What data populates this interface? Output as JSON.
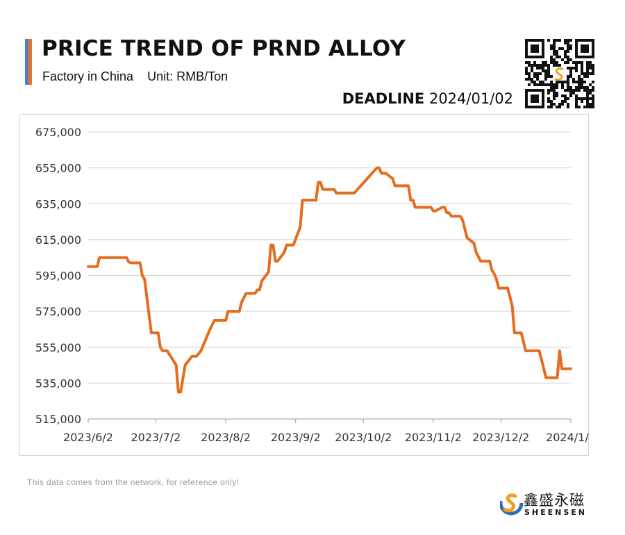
{
  "header": {
    "title": "PRICE TREND OF PRND ALLOY",
    "subtitle_left": "Factory in China",
    "subtitle_right": "Unit: RMB/Ton",
    "deadline_label": "DEADLINE",
    "deadline_date": "2024/01/02",
    "accent_colors": [
      "#4a7fc1",
      "#e8722a"
    ]
  },
  "footer": {
    "note": "This data comes from the network, for reference only!",
    "brand_cn": "鑫盛永磁",
    "brand_en": "SHEENSEN"
  },
  "colors": {
    "line": "#e46c1f",
    "grid": "#d9d9d9",
    "axis_text": "#333333"
  },
  "chart_data": {
    "type": "line",
    "title": "PRICE TREND OF PRND ALLOY",
    "xlabel": "",
    "ylabel": "",
    "ylim": [
      515000,
      675000
    ],
    "yticks": [
      515000,
      535000,
      555000,
      575000,
      595000,
      615000,
      635000,
      655000,
      675000
    ],
    "ytick_labels": [
      "515,000",
      "535,000",
      "555,000",
      "575,000",
      "595,000",
      "615,000",
      "635,000",
      "655,000",
      "675,000"
    ],
    "xlim": [
      "2023-06-02",
      "2024-01-02"
    ],
    "xticks": [
      "2023-06-02",
      "2023-07-02",
      "2023-08-02",
      "2023-09-02",
      "2023-10-02",
      "2023-11-02",
      "2023-12-02",
      "2024-01-02"
    ],
    "xtick_labels": [
      "2023/6/2",
      "2023/7/2",
      "2023/8/2",
      "2023/9/2",
      "2023/10/2",
      "2023/11/2",
      "2023/12/2",
      "2024/1/2"
    ],
    "grid": "horizontal",
    "legend": "none",
    "series": [
      {
        "color": "#e46c1f",
        "points": [
          [
            "2023-06-02",
            600000
          ],
          [
            "2023-06-06",
            600000
          ],
          [
            "2023-06-07",
            605000
          ],
          [
            "2023-06-19",
            605000
          ],
          [
            "2023-06-20",
            602500
          ],
          [
            "2023-06-21",
            602000
          ],
          [
            "2023-06-25",
            602000
          ],
          [
            "2023-06-26",
            595000
          ],
          [
            "2023-06-27",
            593000
          ],
          [
            "2023-06-30",
            563000
          ],
          [
            "2023-07-03",
            563000
          ],
          [
            "2023-07-04",
            555000
          ],
          [
            "2023-07-05",
            553000
          ],
          [
            "2023-07-07",
            553000
          ],
          [
            "2023-07-11",
            545000
          ],
          [
            "2023-07-12",
            530000
          ],
          [
            "2023-07-13",
            530000
          ],
          [
            "2023-07-15",
            545000
          ],
          [
            "2023-07-18",
            550000
          ],
          [
            "2023-07-20",
            550000
          ],
          [
            "2023-07-22",
            553000
          ],
          [
            "2023-07-26",
            565000
          ],
          [
            "2023-07-28",
            570000
          ],
          [
            "2023-08-01",
            570000
          ],
          [
            "2023-08-02",
            570000
          ],
          [
            "2023-08-03",
            575000
          ],
          [
            "2023-08-08",
            575000
          ],
          [
            "2023-08-09",
            580000
          ],
          [
            "2023-08-11",
            585000
          ],
          [
            "2023-08-15",
            585000
          ],
          [
            "2023-08-16",
            587000
          ],
          [
            "2023-08-17",
            587000
          ],
          [
            "2023-08-18",
            592000
          ],
          [
            "2023-08-21",
            597000
          ],
          [
            "2023-08-22",
            612000
          ],
          [
            "2023-08-23",
            612000
          ],
          [
            "2023-08-24",
            603000
          ],
          [
            "2023-08-25",
            603000
          ],
          [
            "2023-08-28",
            608000
          ],
          [
            "2023-08-29",
            612000
          ],
          [
            "2023-09-01",
            612000
          ],
          [
            "2023-09-04",
            622000
          ],
          [
            "2023-09-05",
            637000
          ],
          [
            "2023-09-11",
            637000
          ],
          [
            "2023-09-12",
            647000
          ],
          [
            "2023-09-13",
            647000
          ],
          [
            "2023-09-14",
            643000
          ],
          [
            "2023-09-19",
            643000
          ],
          [
            "2023-09-20",
            641000
          ],
          [
            "2023-09-28",
            641000
          ],
          [
            "2023-10-08",
            655000
          ],
          [
            "2023-10-09",
            655000
          ],
          [
            "2023-10-10",
            652000
          ],
          [
            "2023-10-12",
            652000
          ],
          [
            "2023-10-15",
            649000
          ],
          [
            "2023-10-16",
            645000
          ],
          [
            "2023-10-22",
            645000
          ],
          [
            "2023-10-23",
            637000
          ],
          [
            "2023-10-24",
            637000
          ],
          [
            "2023-10-25",
            633000
          ],
          [
            "2023-11-01",
            633000
          ],
          [
            "2023-11-02",
            631000
          ],
          [
            "2023-11-03",
            631000
          ],
          [
            "2023-11-06",
            633000
          ],
          [
            "2023-11-07",
            633000
          ],
          [
            "2023-11-08",
            630000
          ],
          [
            "2023-11-09",
            630000
          ],
          [
            "2023-11-10",
            628000
          ],
          [
            "2023-11-14",
            628000
          ],
          [
            "2023-11-15",
            626000
          ],
          [
            "2023-11-17",
            616000
          ],
          [
            "2023-11-20",
            613000
          ],
          [
            "2023-11-21",
            608000
          ],
          [
            "2023-11-23",
            603000
          ],
          [
            "2023-11-27",
            603000
          ],
          [
            "2023-11-28",
            598000
          ],
          [
            "2023-11-29",
            596000
          ],
          [
            "2023-11-30",
            593000
          ],
          [
            "2023-12-01",
            588000
          ],
          [
            "2023-12-05",
            588000
          ],
          [
            "2023-12-07",
            578000
          ],
          [
            "2023-12-08",
            563000
          ],
          [
            "2023-12-11",
            563000
          ],
          [
            "2023-12-13",
            553000
          ],
          [
            "2023-12-19",
            553000
          ],
          [
            "2023-12-22",
            538000
          ],
          [
            "2023-12-27",
            538000
          ],
          [
            "2023-12-28",
            553000
          ],
          [
            "2023-12-29",
            543000
          ],
          [
            "2024-01-02",
            543000
          ]
        ]
      }
    ]
  }
}
